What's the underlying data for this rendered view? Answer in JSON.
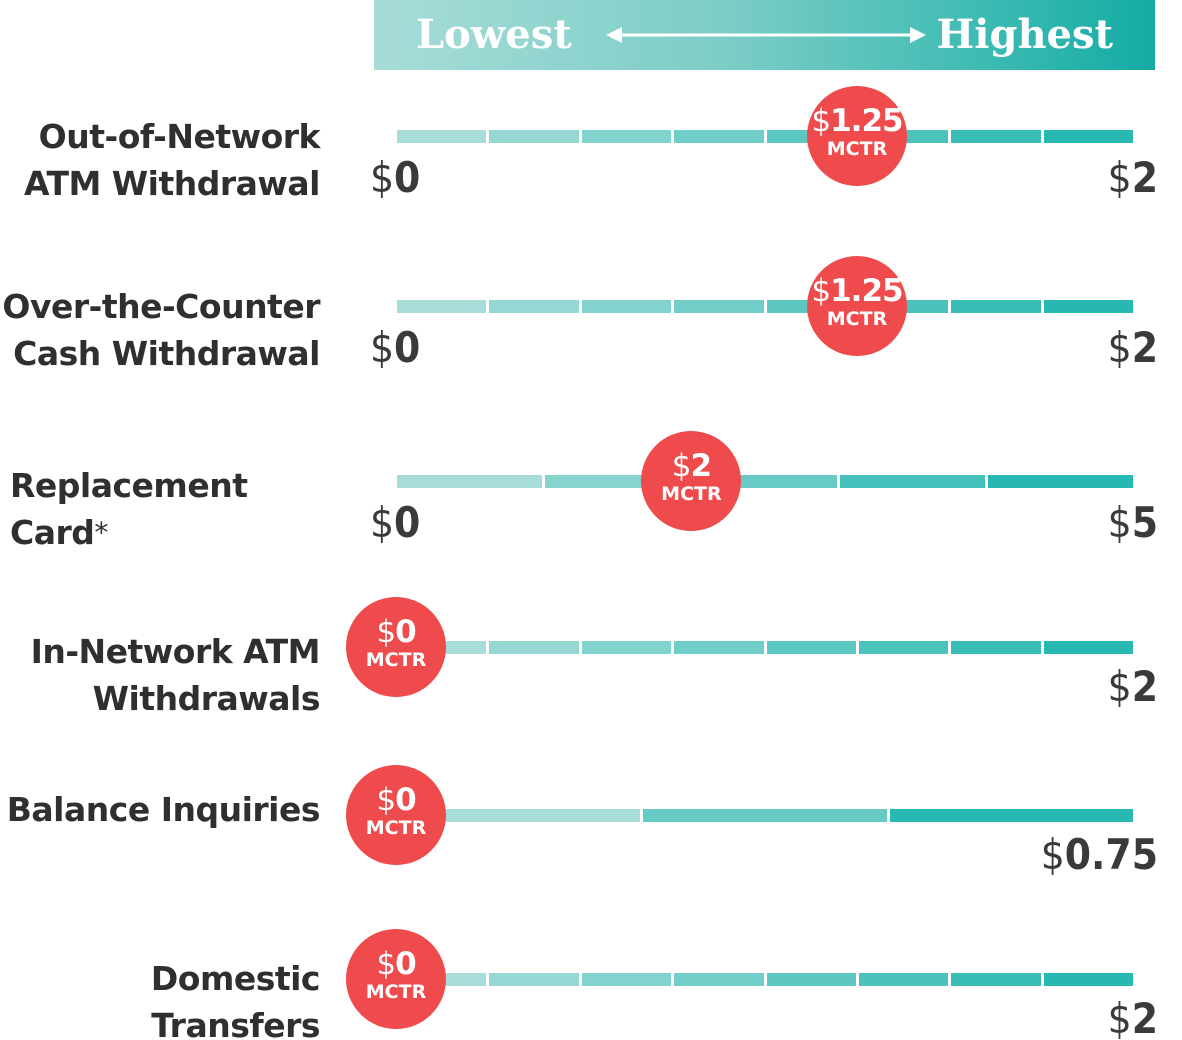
{
  "legend": {
    "low_label": "Lowest",
    "high_label": "Highest",
    "colors": [
      "#a7dcd8",
      "#14aba4"
    ]
  },
  "currency_symbol": "$",
  "marker_tag": "MCTR",
  "colors": {
    "marker": "#ef4b4d"
  },
  "chart_data": {
    "type": "range-marker",
    "series_name": "MCTR",
    "rows": [
      {
        "label": "Out-of-Network\nATM Withdrawal",
        "min": 0,
        "max": 2,
        "value": 1.25,
        "min_label": "0",
        "max_label": "2",
        "value_label": "1.25",
        "segments": 8,
        "show_min": true,
        "asterisk": ""
      },
      {
        "label": "Over-the-Counter\nCash Withdrawal",
        "min": 0,
        "max": 2,
        "value": 1.25,
        "min_label": "0",
        "max_label": "2",
        "value_label": "1.25",
        "segments": 8,
        "show_min": true,
        "asterisk": ""
      },
      {
        "label": "Replacement Card",
        "min": 0,
        "max": 5,
        "value": 2,
        "min_label": "0",
        "max_label": "5",
        "value_label": "2",
        "segments": 5,
        "show_min": true,
        "asterisk": "*"
      },
      {
        "label": "In-Network ATM\nWithdrawals",
        "min": 0,
        "max": 2,
        "value": 0,
        "min_label": "0",
        "max_label": "2",
        "value_label": "0",
        "segments": 8,
        "show_min": false,
        "asterisk": ""
      },
      {
        "label": "Balance Inquiries",
        "min": 0,
        "max": 0.75,
        "value": 0,
        "min_label": "0",
        "max_label": "0.75",
        "value_label": "0",
        "segments": 3,
        "show_min": false,
        "asterisk": ""
      },
      {
        "label": "Domestic Transfers",
        "min": 0,
        "max": 2,
        "value": 0,
        "min_label": "0",
        "max_label": "2",
        "value_label": "0",
        "segments": 8,
        "show_min": false,
        "asterisk": ""
      }
    ]
  }
}
